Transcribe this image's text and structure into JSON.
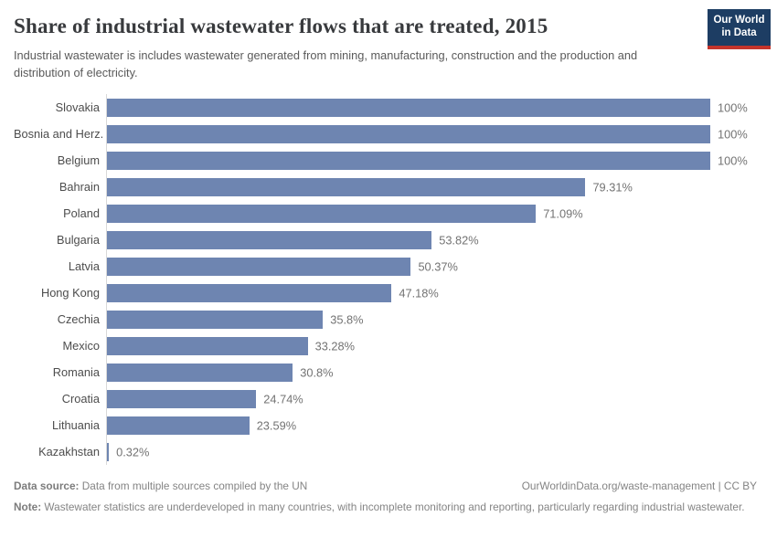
{
  "header": {
    "title": "Share of industrial wastewater flows that are treated, 2015",
    "subtitle": "Industrial wastewater is includes wastewater generated from mining, manufacturing, construction and the production and distribution of electricity.",
    "logo_line1": "Our World",
    "logo_line2": "in Data",
    "logo_bg_color": "#1d3d63",
    "logo_accent_color": "#c4342b"
  },
  "chart_data": {
    "type": "bar",
    "orientation": "horizontal",
    "title": "Share of industrial wastewater flows that are treated, 2015",
    "year": "2015",
    "categories": [
      "Slovakia",
      "Bosnia and Herz.",
      "Belgium",
      "Bahrain",
      "Poland",
      "Bulgaria",
      "Latvia",
      "Hong Kong",
      "Czechia",
      "Mexico",
      "Romania",
      "Croatia",
      "Lithuania",
      "Kazakhstan"
    ],
    "values": [
      100,
      100,
      100,
      79.31,
      71.09,
      53.82,
      50.37,
      47.18,
      35.8,
      33.28,
      30.8,
      24.74,
      23.59,
      0.32
    ],
    "value_labels": [
      "100%",
      "100%",
      "100%",
      "79.31%",
      "71.09%",
      "53.82%",
      "50.37%",
      "47.18%",
      "35.8%",
      "33.28%",
      "30.8%",
      "24.74%",
      "23.59%",
      "0.32%"
    ],
    "xlabel": "",
    "ylabel": "",
    "xlim": [
      0,
      100
    ],
    "grid": false,
    "legend": false,
    "bar_color": "#6e85b1",
    "axis_line_color": "#d9d9d9"
  },
  "footer": {
    "datasource_label": "Data source:",
    "datasource_text": " Data from multiple sources compiled by the UN",
    "link_text": "OurWorldinData.org/waste-management | CC BY",
    "note_label": "Note:",
    "note_text": " Wastewater statistics are underdeveloped in many countries, with incomplete monitoring and reporting, particularly regarding industrial wastewater."
  }
}
